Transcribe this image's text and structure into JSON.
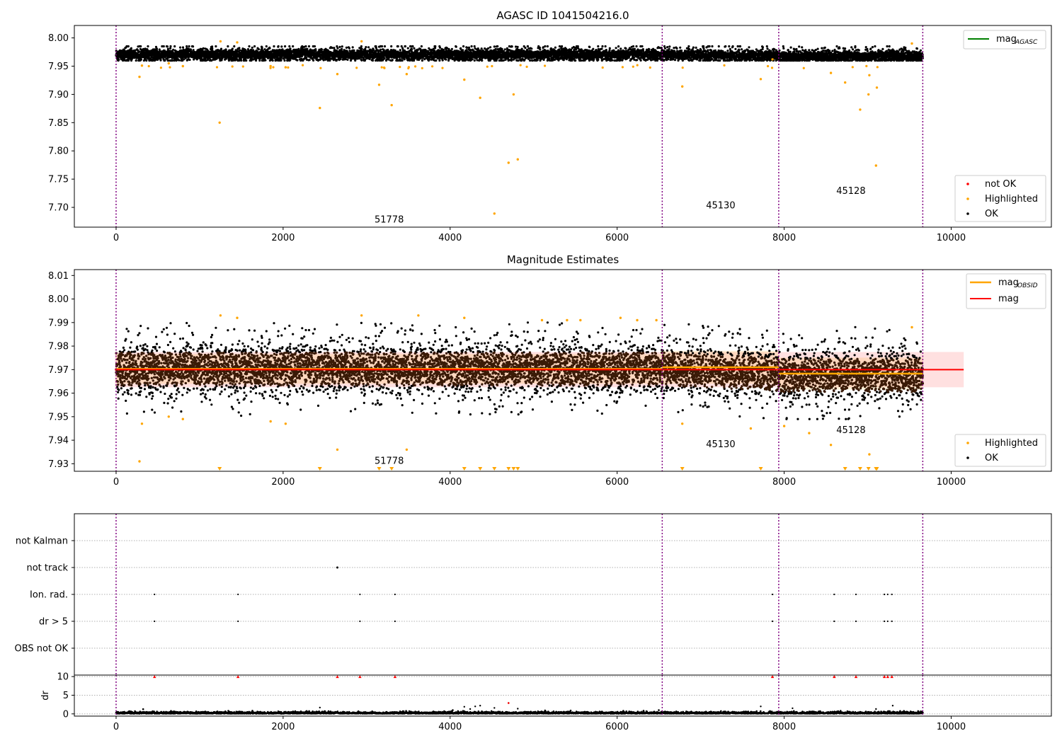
{
  "chart_data": [
    {
      "type": "scatter",
      "title": "AGASC ID 1041504216.0",
      "xlim": [
        -500,
        11200
      ],
      "ylim": [
        7.665,
        8.022
      ],
      "xticks": [
        0,
        2000,
        4000,
        6000,
        8000,
        10000
      ],
      "yticks": [
        7.7,
        7.75,
        7.8,
        7.85,
        7.9,
        7.95,
        8.0
      ],
      "ytick_labels": [
        "7.70",
        "7.75",
        "7.80",
        "7.85",
        "7.90",
        "7.95",
        "8.00"
      ],
      "obs_boundaries": [
        0,
        6540,
        7935,
        9660
      ],
      "obsids": [
        {
          "label": "51778",
          "x": 3270,
          "y": 7.673
        },
        {
          "label": "45130",
          "x": 7240,
          "y": 7.698
        },
        {
          "label": "45128",
          "x": 8800,
          "y": 7.724
        }
      ],
      "band": [
        7.955,
        7.985
      ],
      "legend_top": [
        {
          "label": "mag",
          "sub": "AGASC",
          "color": "#008000"
        }
      ],
      "legend_bottom": [
        {
          "label": "not OK",
          "color": "#ff0000"
        },
        {
          "label": "Highlighted",
          "color": "#ffa500"
        },
        {
          "label": "OK",
          "color": "#000000"
        }
      ],
      "highlighted": [
        [
          280,
          7.931
        ],
        [
          310,
          7.951
        ],
        [
          630,
          7.955
        ],
        [
          800,
          7.95
        ],
        [
          1240,
          7.85
        ],
        [
          1250,
          7.994
        ],
        [
          1450,
          7.992
        ],
        [
          1850,
          7.95
        ],
        [
          2030,
          7.948
        ],
        [
          2440,
          7.876
        ],
        [
          2650,
          7.936
        ],
        [
          2940,
          7.994
        ],
        [
          3150,
          7.917
        ],
        [
          3300,
          7.881
        ],
        [
          3480,
          7.936
        ],
        [
          4170,
          7.926
        ],
        [
          4360,
          7.894
        ],
        [
          4530,
          7.689
        ],
        [
          4700,
          7.779
        ],
        [
          4760,
          7.9
        ],
        [
          4810,
          7.785
        ],
        [
          6780,
          7.914
        ],
        [
          7720,
          7.927
        ],
        [
          7860,
          7.962
        ],
        [
          8560,
          7.938
        ],
        [
          8730,
          7.921
        ],
        [
          8910,
          7.873
        ],
        [
          9010,
          7.9
        ],
        [
          9020,
          7.934
        ],
        [
          9100,
          7.774
        ],
        [
          9110,
          7.912
        ],
        [
          9530,
          7.99
        ]
      ]
    },
    {
      "type": "scatter",
      "title": "Magnitude Estimates",
      "xlim": [
        -500,
        11200
      ],
      "ylim": [
        7.9268,
        8.0125
      ],
      "xticks": [
        0,
        2000,
        4000,
        6000,
        8000,
        10000
      ],
      "yticks": [
        7.93,
        7.94,
        7.95,
        7.96,
        7.97,
        7.98,
        7.99,
        8.0,
        8.01
      ],
      "ytick_labels": [
        "7.93",
        "7.94",
        "7.95",
        "7.96",
        "7.97",
        "7.98",
        "7.99",
        "8.00",
        "8.01"
      ],
      "obs_boundaries": [
        0,
        6540,
        7935,
        9660
      ],
      "obsids": [
        {
          "label": "51778",
          "x": 3270,
          "y": 7.93
        },
        {
          "label": "45130",
          "x": 7240,
          "y": 7.937
        },
        {
          "label": "45128",
          "x": 8800,
          "y": 7.943
        }
      ],
      "mag": 7.97,
      "mag_band": [
        7.9625,
        7.9775
      ],
      "mag_obsid": [
        {
          "x": [
            0,
            6540
          ],
          "y": 7.9703,
          "band": [
            7.964,
            7.9766
          ]
        },
        {
          "x": [
            6540,
            7935
          ],
          "y": 7.971,
          "band": [
            7.964,
            7.978
          ]
        },
        {
          "x": [
            7935,
            9660
          ],
          "y": 7.9683,
          "band": [
            7.9615,
            7.9751
          ]
        }
      ],
      "legend_top": [
        {
          "label": "mag",
          "sub": "OBSID",
          "color": "#ffa500"
        },
        {
          "label": "mag",
          "sub": "",
          "color": "#ff0000"
        }
      ],
      "legend_bottom": [
        {
          "label": "Highlighted",
          "color": "#ffa500"
        },
        {
          "label": "OK",
          "color": "#000000"
        }
      ],
      "highlighted": [
        [
          280,
          7.931
        ],
        [
          310,
          7.947
        ],
        [
          630,
          7.95
        ],
        [
          800,
          7.949
        ],
        [
          1250,
          7.993
        ],
        [
          1450,
          7.992
        ],
        [
          1850,
          7.948
        ],
        [
          2030,
          7.947
        ],
        [
          2650,
          7.936
        ],
        [
          2940,
          7.993
        ],
        [
          3480,
          7.936
        ],
        [
          3620,
          7.993
        ],
        [
          4170,
          7.992
        ],
        [
          5100,
          7.991
        ],
        [
          5400,
          7.991
        ],
        [
          5560,
          7.991
        ],
        [
          6040,
          7.992
        ],
        [
          6240,
          7.991
        ],
        [
          6470,
          7.991
        ],
        [
          6780,
          7.947
        ],
        [
          7600,
          7.945
        ],
        [
          8000,
          7.946
        ],
        [
          8300,
          7.943
        ],
        [
          8560,
          7.938
        ],
        [
          9020,
          7.934
        ],
        [
          9530,
          7.988
        ]
      ],
      "out_of_range_x": [
        1240,
        2440,
        3150,
        3300,
        4170,
        4360,
        4530,
        4700,
        4760,
        4810,
        6780,
        7720,
        8730,
        8910,
        9010,
        9100,
        9110
      ]
    },
    {
      "type": "scatter",
      "title": "",
      "xlim": [
        -500,
        11200
      ],
      "flag_labels": [
        "not Kalman",
        "not track",
        "Ion. rad.",
        "dr > 5",
        "OBS not OK"
      ],
      "obs_boundaries": [
        0,
        6540,
        7935,
        9660
      ],
      "flags": {
        "not track": [
          2650
        ],
        "Ion. rad.": [
          460,
          1460,
          2920,
          3340,
          7860,
          8600,
          8860,
          9200,
          9240,
          9290
        ],
        "dr > 5": [
          460,
          1460,
          2920,
          3340,
          7860,
          8600,
          8860,
          9200,
          9240,
          9290
        ]
      }
    },
    {
      "type": "scatter",
      "title": "",
      "ylabel": "dr",
      "xlim": [
        -500,
        11200
      ],
      "ylim": [
        -0.6,
        10.4
      ],
      "xticks": [
        0,
        2000,
        4000,
        6000,
        8000,
        10000
      ],
      "yticks": [
        0,
        5,
        10
      ],
      "ytick_labels": [
        "0",
        "5",
        "10"
      ],
      "obs_boundaries": [
        0,
        6540,
        7935,
        9660
      ],
      "dr_clipped_x": [
        460,
        1460,
        2650,
        2920,
        3340,
        7860,
        8600,
        8860,
        9200,
        9240,
        9290
      ],
      "dr_spikes": [
        [
          2440,
          1.7
        ],
        [
          4170,
          1.9
        ],
        [
          4240,
          1.3
        ],
        [
          4300,
          2.0
        ],
        [
          4360,
          2.2
        ],
        [
          4530,
          1.6
        ],
        [
          4700,
          2.9
        ],
        [
          4810,
          1.4
        ],
        [
          7720,
          2.0
        ],
        [
          8100,
          1.5
        ],
        [
          9100,
          1.3
        ],
        [
          9300,
          2.2
        ]
      ]
    }
  ]
}
